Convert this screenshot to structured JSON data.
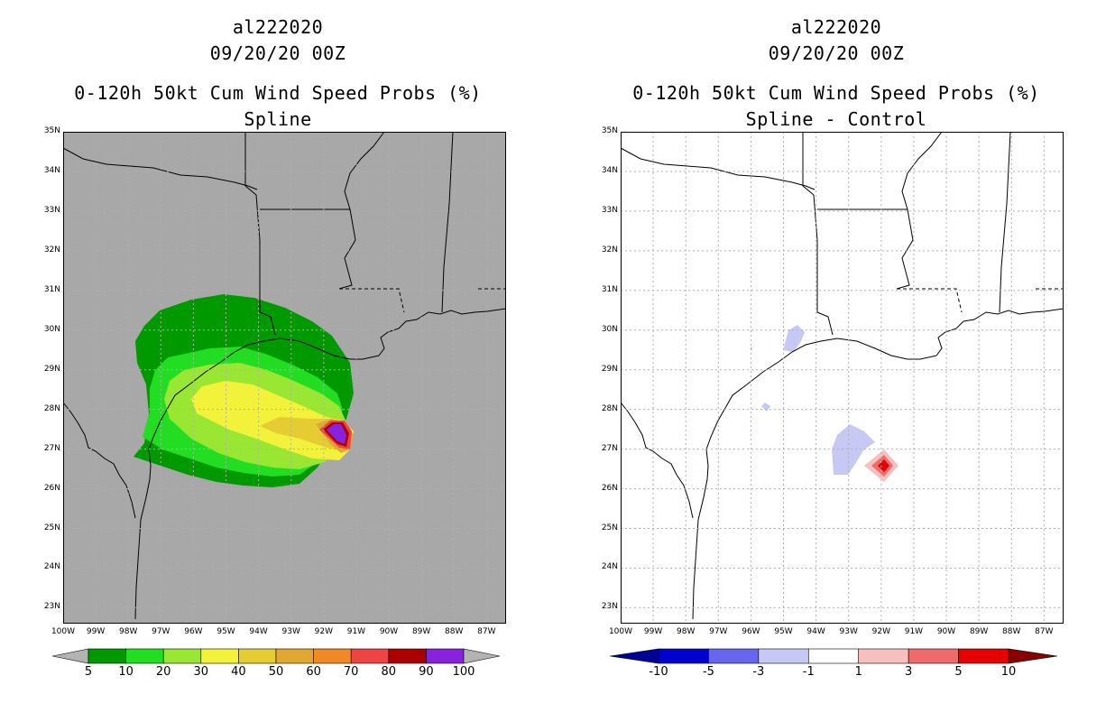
{
  "left_panel": {
    "storm_id": "al222020",
    "datetime": "09/20/20 00Z",
    "product": "0-120h 50kt Cum Wind Speed Probs (%)",
    "subtitle": "Spline"
  },
  "right_panel": {
    "storm_id": "al222020",
    "datetime": "09/20/20 00Z",
    "product": "0-120h 50kt Cum Wind Speed Probs (%)",
    "subtitle": "Spline - Control"
  },
  "axes": {
    "lat_labels": [
      "35N",
      "34N",
      "33N",
      "32N",
      "31N",
      "30N",
      "29N",
      "28N",
      "27N",
      "26N",
      "25N",
      "24N",
      "23N"
    ],
    "lon_labels": [
      "100W",
      "99W",
      "98W",
      "97W",
      "96W",
      "95W",
      "94W",
      "93W",
      "92W",
      "91W",
      "90W",
      "89W",
      "88W",
      "87W"
    ],
    "lat_range": [
      22.6,
      35
    ],
    "lon_range": [
      -100,
      -86.4
    ]
  },
  "left_colorbar": {
    "labels": [
      "5",
      "10",
      "20",
      "30",
      "40",
      "50",
      "60",
      "70",
      "80",
      "90",
      "100"
    ],
    "colors": [
      "#009900",
      "#22dd22",
      "#99e633",
      "#f2f23a",
      "#e6cc33",
      "#e0a830",
      "#ef8a27",
      "#ee4444",
      "#aa0000",
      "#8822dd"
    ],
    "under_color": "#b3b3b3",
    "over_color": "#b3b3b3"
  },
  "right_colorbar": {
    "labels": [
      "-10",
      "-5",
      "-3",
      "-1",
      "1",
      "3",
      "5",
      "10"
    ],
    "colors": [
      "#0000cc",
      "#6666ee",
      "#c8c8f5",
      "#ffffff",
      "#f7c0c0",
      "#ef6a6a",
      "#e60000"
    ],
    "under_color": "#000099",
    "over_color": "#880000"
  },
  "map_colors": {
    "left_background": "#a8a8a8",
    "right_background": "#ffffff",
    "coastline": "#000000",
    "grid": "#b0b0b0"
  }
}
